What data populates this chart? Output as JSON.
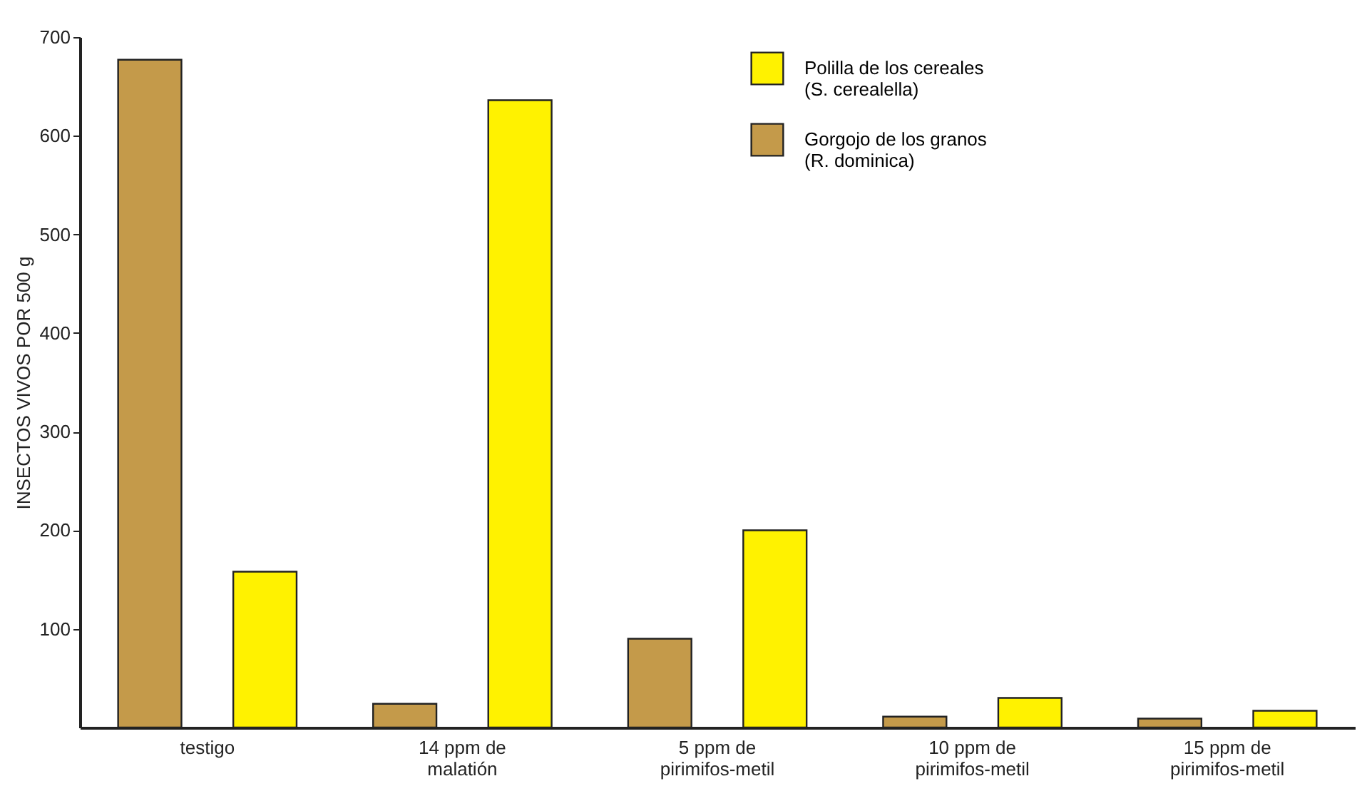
{
  "chart_data": {
    "type": "bar",
    "ylabel": "INSECTOS VIVOS POR 500 g",
    "categories": [
      "testigo",
      "14 ppm de\nmalatión",
      "5 ppm de\npirimifos-metil",
      "10 ppm de\npirimifos-metil",
      "15 ppm de\npirimifos-metil"
    ],
    "series": [
      {
        "name": "Gorgojo de los granos\n(R. dominica)",
        "color": "#c49a4a",
        "values": [
          677,
          24,
          90,
          11,
          9
        ]
      },
      {
        "name": "Polilla de los cereales\n(S. cerealella)",
        "color": "#fff200",
        "values": [
          158,
          636,
          200,
          30,
          17
        ]
      }
    ],
    "ylim": [
      0,
      700
    ],
    "yticks": [
      100,
      200,
      300,
      400,
      500,
      600,
      700
    ],
    "grid": false,
    "legend": "top right"
  }
}
